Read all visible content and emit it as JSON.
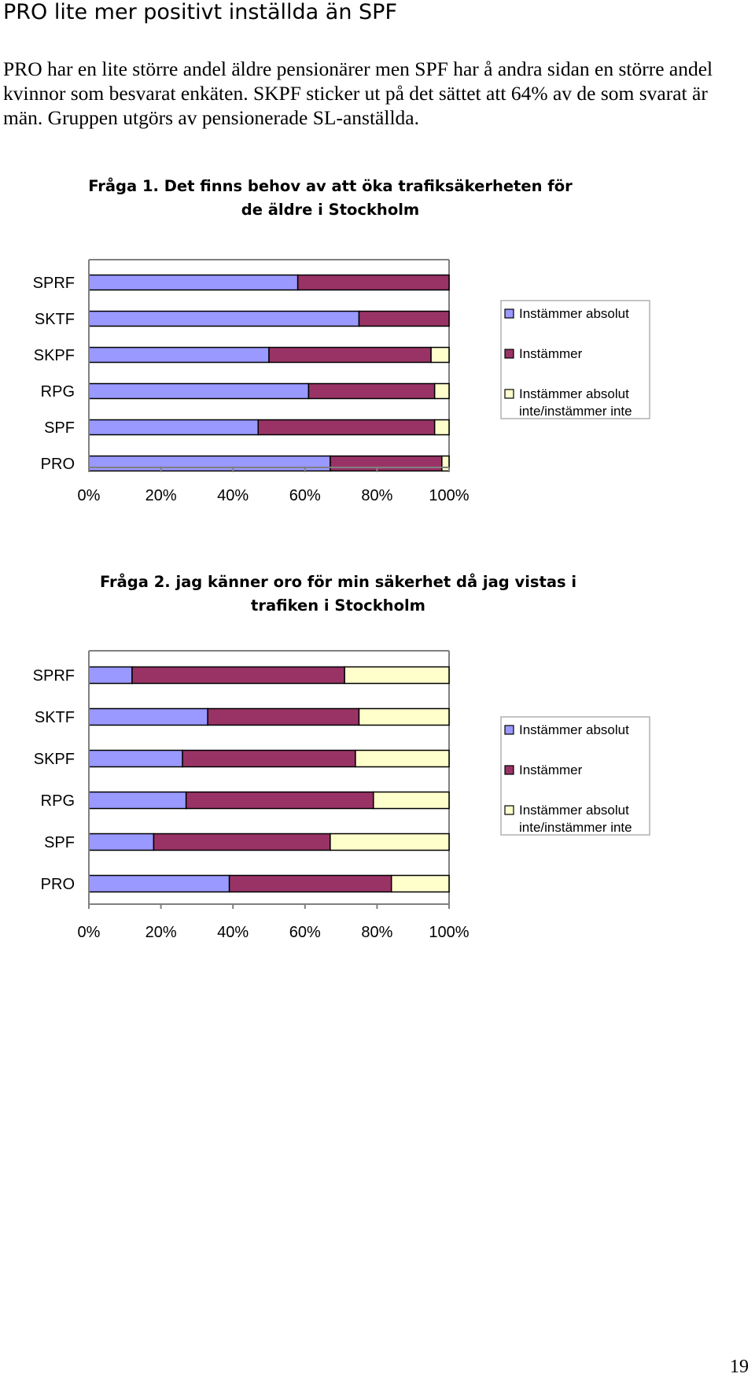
{
  "page": {
    "heading": "PRO lite mer positivt inställda än SPF",
    "paragraph": "PRO har en lite större andel äldre pensionärer men SPF har å andra sidan en större andel kvinnor som besvarat enkäten. SKPF sticker ut på det sättet att 64% av de som svarat är män. Gruppen utgörs av pensionerade SL-anställda.",
    "page_number": "19"
  },
  "colors": {
    "absolut": "#9999ff",
    "instammer": "#993366",
    "inte": "#ffffcc",
    "axis": "#808080"
  },
  "chart_data": [
    {
      "type": "bar",
      "orientation": "horizontal",
      "stacked": "percent",
      "title": "Fråga 1. Det finns behov av att öka trafiksäkerheten för de äldre i Stockholm",
      "categories": [
        "SPRF",
        "SKTF",
        "SKPF",
        "RPG",
        "SPF",
        "PRO"
      ],
      "series": [
        {
          "name": "Instämmer absolut",
          "values": [
            58,
            75,
            50,
            61,
            47,
            67
          ]
        },
        {
          "name": "Instämmer",
          "values": [
            42,
            25,
            45,
            35,
            49,
            31
          ]
        },
        {
          "name": "Instämmer absolut inte/instämmer inte",
          "values": [
            0,
            0,
            5,
            4,
            4,
            2
          ]
        }
      ],
      "xticks": [
        "0%",
        "20%",
        "40%",
        "60%",
        "80%",
        "100%"
      ],
      "xlim": [
        0,
        100
      ],
      "legend": "right"
    },
    {
      "type": "bar",
      "orientation": "horizontal",
      "stacked": "percent",
      "title": "Fråga 2. jag känner oro för min säkerhet då jag vistas i trafiken i Stockholm",
      "categories": [
        "SPRF",
        "SKTF",
        "SKPF",
        "RPG",
        "SPF",
        "PRO"
      ],
      "series": [
        {
          "name": "Instämmer absolut",
          "values": [
            12,
            33,
            26,
            27,
            18,
            39
          ]
        },
        {
          "name": "Instämmer",
          "values": [
            59,
            42,
            48,
            52,
            49,
            45
          ]
        },
        {
          "name": "Instämmer absolut inte/instämmer inte",
          "values": [
            29,
            25,
            26,
            21,
            33,
            16
          ]
        }
      ],
      "xticks": [
        "0%",
        "20%",
        "40%",
        "60%",
        "80%",
        "100%"
      ],
      "xlim": [
        0,
        100
      ],
      "legend": "right"
    }
  ]
}
